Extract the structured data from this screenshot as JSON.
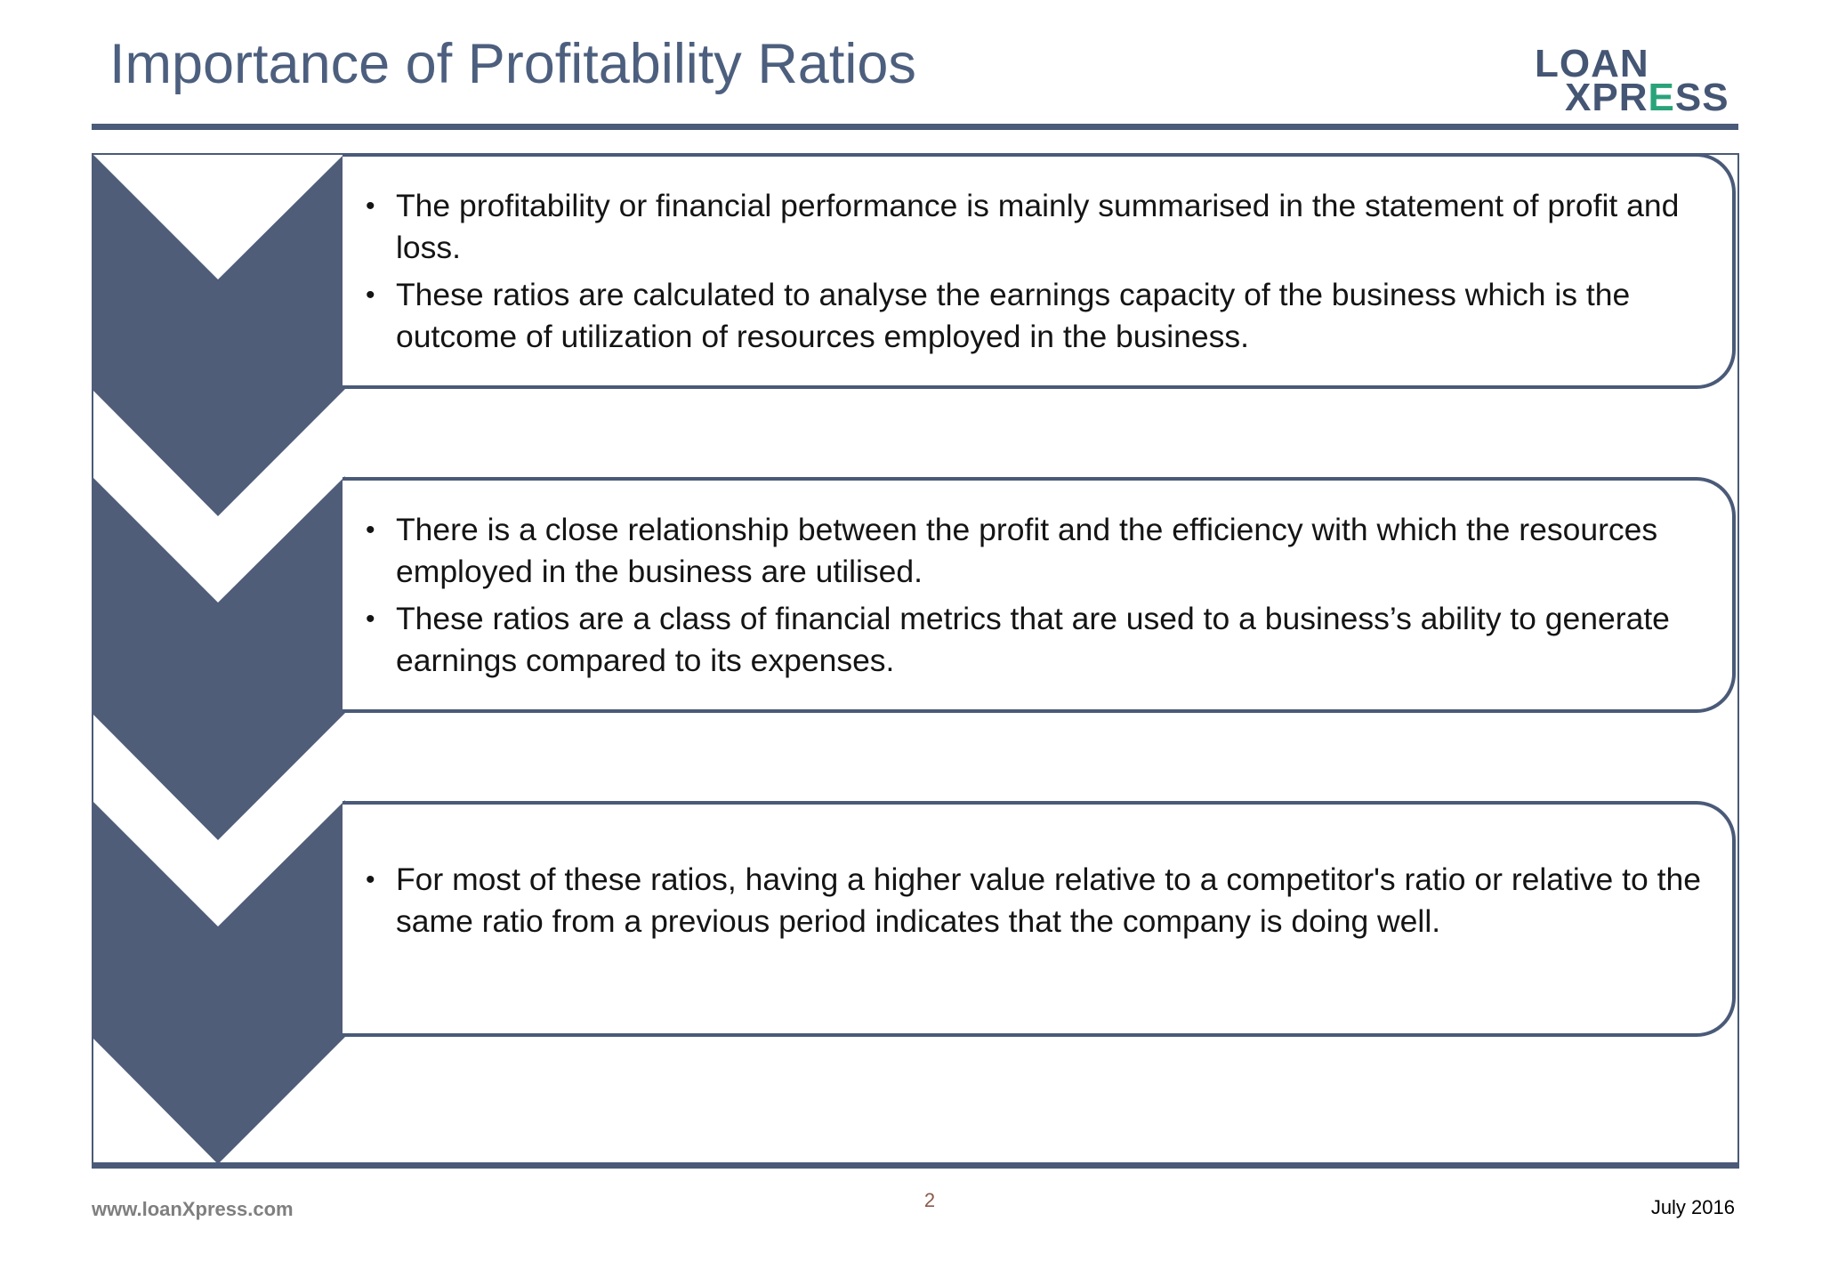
{
  "slide": {
    "title": "Importance of Profitability Ratios",
    "logo": {
      "line1": "LOAN",
      "line2_prefix": "XPR",
      "line2_accent": "E",
      "line2_suffix": "SS"
    },
    "colors": {
      "primary": "#4a5a78",
      "title": "#4d5f7e",
      "chevron": "#4f5d79",
      "accent": "#2aa37a"
    },
    "blocks": [
      {
        "bullets": [
          "The profitability or financial performance is mainly summarised in the statement of profit and loss.",
          "These ratios are calculated to analyse the earnings capacity of the business which is the outcome of utilization of resources employed in the business."
        ]
      },
      {
        "bullets": [
          "There is a close relationship between the profit and the efficiency with which the resources employed in the business are utilised.",
          "These ratios are a class of financial metrics that are used to a business’s ability to generate earnings compared to its expenses."
        ]
      },
      {
        "bullets": [
          "For most of these ratios, having a higher value relative to a competitor's ratio or relative  to the same ratio from a previous period indicates that the company is doing well."
        ]
      }
    ],
    "footer": {
      "website": "www.loanXpress.com",
      "page_number": "2",
      "date": "July 2016"
    }
  }
}
